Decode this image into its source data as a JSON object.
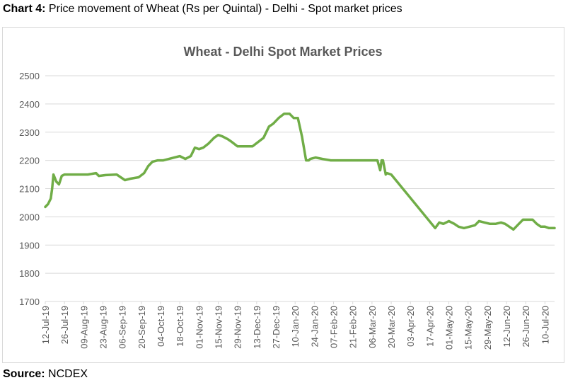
{
  "caption": {
    "label": "Chart 4:",
    "text": "Price movement of Wheat (Rs per Quintal) - Delhi - Spot market prices"
  },
  "source": {
    "label": "Source:",
    "text": "NCDEX"
  },
  "colors": {
    "line": "#70ad47",
    "grid": "#d9d9d9",
    "axis_text": "#595959",
    "title_text": "#595959"
  },
  "chart_data": {
    "type": "line",
    "title": "Wheat - Delhi Spot Market Prices",
    "xlabel": "",
    "ylabel": "",
    "ylim": [
      1700,
      2500
    ],
    "yticks": [
      1700,
      1800,
      1900,
      2000,
      2100,
      2200,
      2300,
      2400,
      2500
    ],
    "grid": true,
    "legend": "none",
    "x_tick_labels": [
      "12-Jul-19",
      "26-Jul-19",
      "09-Aug-19",
      "23-Aug-19",
      "06-Sep-19",
      "20-Sep-19",
      "04-Oct-19",
      "18-Oct-19",
      "01-Nov-19",
      "15-Nov-19",
      "29-Nov-19",
      "13-Dec-19",
      "27-Dec-19",
      "10-Jan-20",
      "24-Jan-20",
      "07-Feb-20",
      "21-Feb-20",
      "06-Mar-20",
      "20-Mar-20",
      "03-Apr-20",
      "17-Apr-20",
      "01-May-20",
      "15-May-20",
      "29-May-20",
      "12-Jun-20",
      "26-Jun-20",
      "10-Jul-20"
    ],
    "series": [
      {
        "x": [
          "2019-07-12",
          "2019-07-14",
          "2019-07-16",
          "2019-07-17",
          "2019-07-18",
          "2019-07-20",
          "2019-07-22",
          "2019-07-24",
          "2019-07-26",
          "2019-07-30",
          "2019-08-05",
          "2019-08-12",
          "2019-08-18",
          "2019-08-20",
          "2019-08-25",
          "2019-09-02",
          "2019-09-05",
          "2019-09-08",
          "2019-09-12",
          "2019-09-18",
          "2019-09-22",
          "2019-09-25",
          "2019-09-28",
          "2019-10-02",
          "2019-10-06",
          "2019-10-10",
          "2019-10-14",
          "2019-10-18",
          "2019-10-22",
          "2019-10-26",
          "2019-10-29",
          "2019-11-01",
          "2019-11-04",
          "2019-11-08",
          "2019-11-12",
          "2019-11-15",
          "2019-11-18",
          "2019-11-22",
          "2019-11-25",
          "2019-11-29",
          "2019-12-04",
          "2019-12-10",
          "2019-12-14",
          "2019-12-18",
          "2019-12-22",
          "2019-12-25",
          "2019-12-29",
          "2020-01-02",
          "2020-01-06",
          "2020-01-09",
          "2020-01-12",
          "2020-01-15",
          "2020-01-18",
          "2020-01-19",
          "2020-01-20",
          "2020-01-21",
          "2020-01-25",
          "2020-01-30",
          "2020-02-05",
          "2020-02-10",
          "2020-02-15",
          "2020-02-20",
          "2020-02-25",
          "2020-03-01",
          "2020-03-05",
          "2020-03-10",
          "2020-03-12",
          "2020-03-13",
          "2020-03-14",
          "2020-03-16",
          "2020-03-17",
          "2020-03-20",
          "2020-04-21",
          "2020-04-24",
          "2020-04-27",
          "2020-05-01",
          "2020-05-05",
          "2020-05-08",
          "2020-05-12",
          "2020-05-16",
          "2020-05-20",
          "2020-05-23",
          "2020-05-27",
          "2020-05-31",
          "2020-06-04",
          "2020-06-08",
          "2020-06-11",
          "2020-06-14",
          "2020-06-17",
          "2020-06-21",
          "2020-06-24",
          "2020-06-28",
          "2020-07-01",
          "2020-07-04",
          "2020-07-07",
          "2020-07-10",
          "2020-07-13",
          "2020-07-17"
        ],
        "values": [
          2035,
          2045,
          2065,
          2100,
          2150,
          2125,
          2115,
          2145,
          2150,
          2150,
          2150,
          2150,
          2155,
          2145,
          2148,
          2150,
          2140,
          2130,
          2135,
          2140,
          2155,
          2180,
          2195,
          2200,
          2200,
          2205,
          2210,
          2215,
          2205,
          2215,
          2245,
          2240,
          2245,
          2260,
          2280,
          2290,
          2285,
          2275,
          2265,
          2250,
          2250,
          2250,
          2265,
          2280,
          2320,
          2330,
          2350,
          2365,
          2365,
          2350,
          2350,
          2285,
          2200,
          2200,
          2200,
          2205,
          2210,
          2205,
          2200,
          2200,
          2200,
          2200,
          2200,
          2200,
          2200,
          2200,
          2165,
          2200,
          2200,
          2150,
          2155,
          2150,
          1960,
          1980,
          1975,
          1985,
          1975,
          1965,
          1960,
          1965,
          1970,
          1985,
          1980,
          1975,
          1975,
          1980,
          1975,
          1965,
          1955,
          1975,
          1990,
          1990,
          1990,
          1975,
          1965,
          1965,
          1960,
          1960
        ]
      }
    ]
  }
}
